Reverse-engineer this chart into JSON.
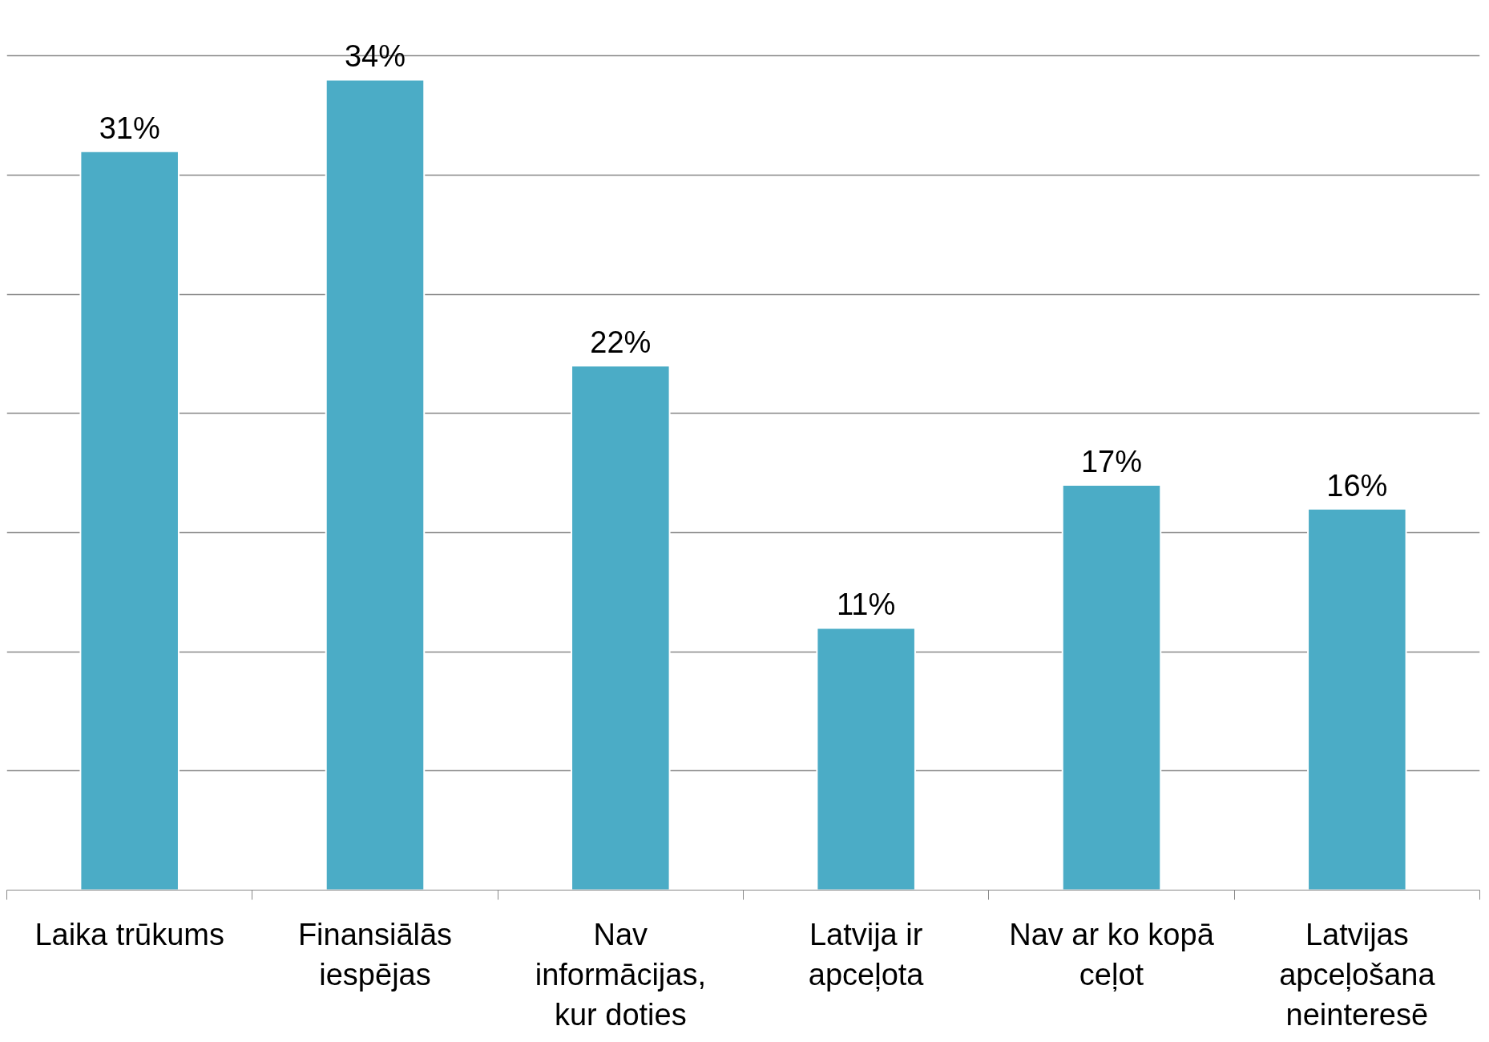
{
  "chart_data": {
    "type": "bar",
    "categories": [
      "Laika trūkums",
      "Finansiālās iespējas",
      "Nav informācijas, kur doties",
      "Latvija ir apceļota",
      "Nav ar ko kopā ceļot",
      "Latvijas apceļošana neinteresē"
    ],
    "values": [
      31,
      34,
      22,
      11,
      17,
      16
    ],
    "value_labels": [
      "31%",
      "34%",
      "22%",
      "11%",
      "17%",
      "16%"
    ],
    "color": "#4bacc6",
    "grid": "y",
    "tick_labels": "x"
  }
}
